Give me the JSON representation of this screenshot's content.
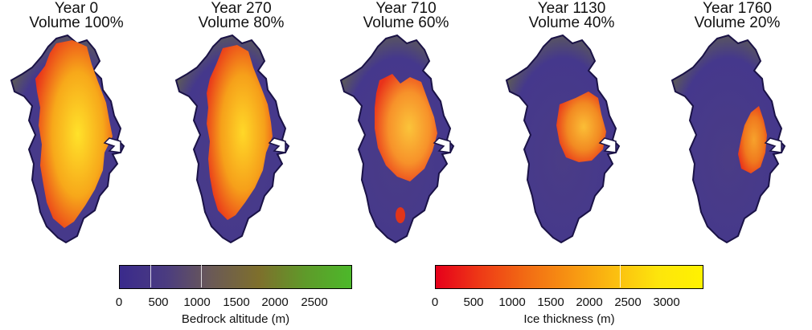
{
  "panels": [
    {
      "year": "Year 0",
      "volume": "Volume 100%",
      "ice_fraction": 1.0
    },
    {
      "year": "Year 270",
      "volume": "Volume 80%",
      "ice_fraction": 0.8
    },
    {
      "year": "Year 710",
      "volume": "Volume 60%",
      "ice_fraction": 0.6
    },
    {
      "year": "Year 1130",
      "volume": "Volume 40%",
      "ice_fraction": 0.4
    },
    {
      "year": "Year 1760",
      "volume": "Volume 20%",
      "ice_fraction": 0.2
    }
  ],
  "bedrock_bar": {
    "title": "Bedrock altitude (m)",
    "ticks": [
      "0",
      "500",
      "1000",
      "1500",
      "2000",
      "2500"
    ],
    "colors": [
      "#3a2a8c",
      "#4b3c80",
      "#6b5a55",
      "#7e6f2c",
      "#5f9a2a",
      "#4cb82a"
    ]
  },
  "ice_bar": {
    "title": "Ice thickness (m)",
    "ticks": [
      "0",
      "500",
      "1000",
      "1500",
      "2000",
      "2500",
      "3000"
    ],
    "colors": [
      "#e6001a",
      "#ee3a16",
      "#f26a14",
      "#f79312",
      "#fbbd10",
      "#fde50c",
      "#fff200"
    ]
  }
}
